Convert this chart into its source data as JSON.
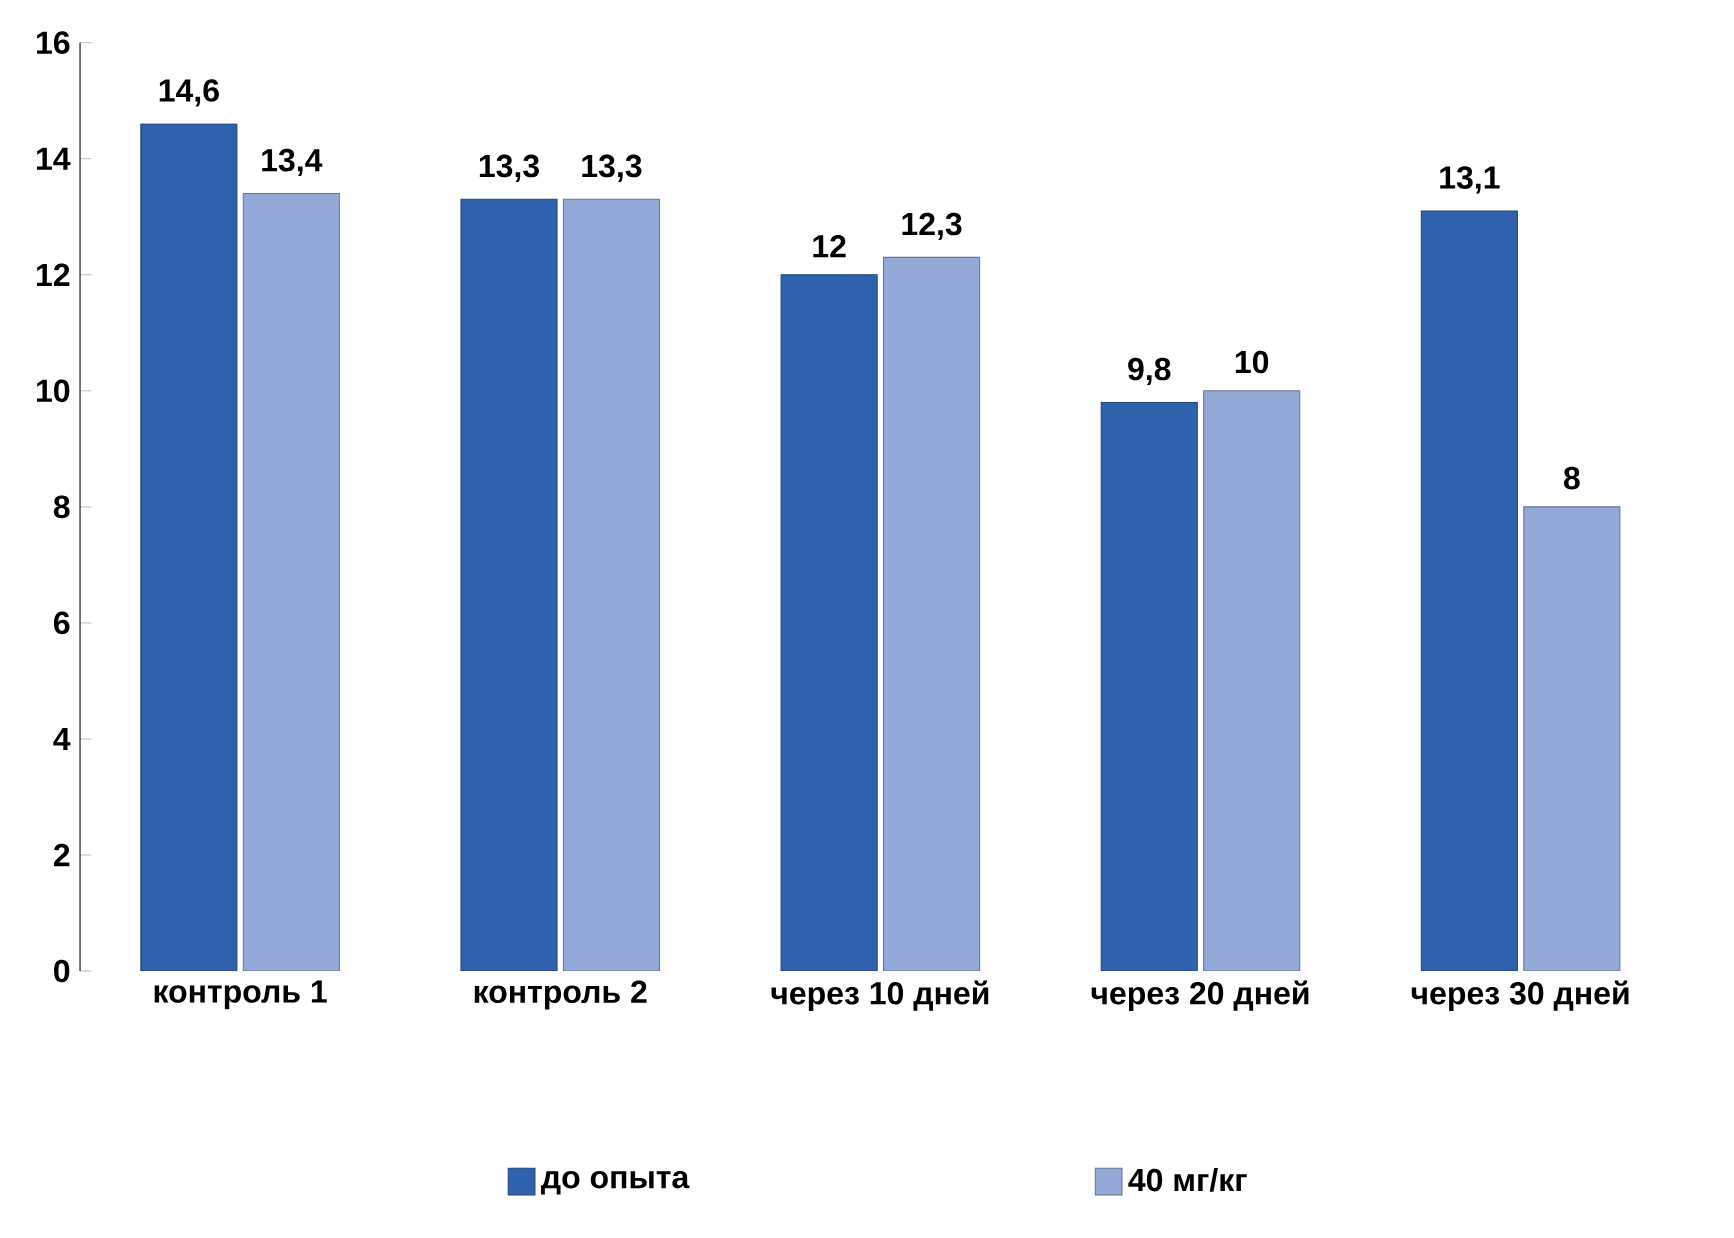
{
  "chart_data": {
    "type": "bar",
    "categories": [
      "контроль 1",
      "контроль 2",
      "через 10 дней",
      "через 20 дней",
      "через 30 дней"
    ],
    "series": [
      {
        "name": "до опыта",
        "color": "#2e62ad",
        "values": [
          14.6,
          13.3,
          12,
          9.8,
          13.1
        ],
        "value_labels": [
          "14,6",
          "13,3",
          "12",
          "9,8",
          "13,1"
        ]
      },
      {
        "name": "40 мг/кг",
        "color": "#93a9d8",
        "values": [
          13.4,
          13.3,
          12.3,
          10,
          8
        ],
        "value_labels": [
          "13,4",
          "13,3",
          "12,3",
          "10",
          "8"
        ]
      }
    ],
    "ylim": [
      0,
      16
    ],
    "yticks": [
      0,
      2,
      4,
      6,
      8,
      10,
      12,
      14,
      16
    ],
    "grid": false,
    "legend": "bottom"
  }
}
